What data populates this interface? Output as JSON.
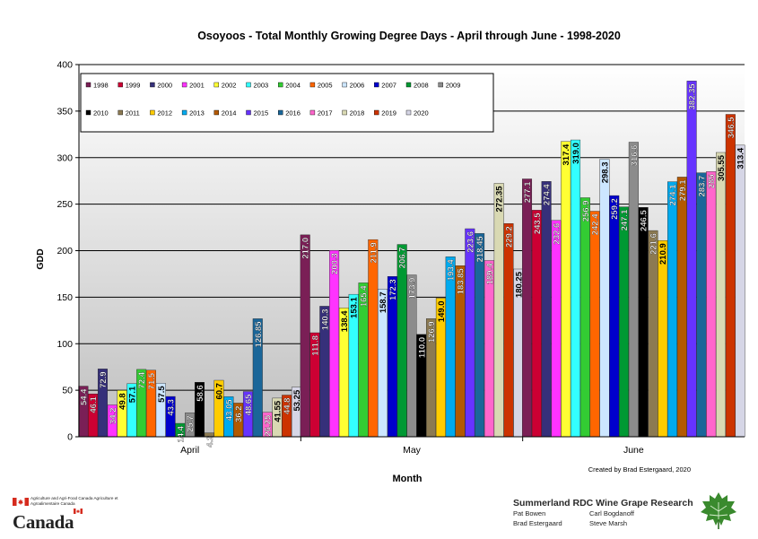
{
  "chart_data": {
    "type": "bar",
    "title": "Osoyoos - Total Monthly Growing Degree Days - April through June - 1998-2020",
    "xlabel": "Month",
    "ylabel": "GDD",
    "ylim": [
      0,
      400
    ],
    "yticks": [
      0,
      50,
      100,
      150,
      200,
      250,
      300,
      350,
      400
    ],
    "grid": true,
    "legend_position": "top-left",
    "categories": [
      "April",
      "May",
      "June"
    ],
    "annotation": "Created by Brad Estergaard, 2020",
    "series": [
      {
        "name": "1998",
        "color": "#7a1f56",
        "values": [
          54.4,
          217.0,
          277.1
        ],
        "labels": [
          "54.4",
          "217.0",
          "277.1"
        ]
      },
      {
        "name": "1999",
        "color": "#cc0033",
        "values": [
          46.1,
          111.8,
          243.5
        ],
        "labels": [
          "46.1",
          "111.8",
          "243.5"
        ]
      },
      {
        "name": "2000",
        "color": "#36307a",
        "values": [
          72.9,
          140.3,
          274.4
        ],
        "labels": [
          "72.9",
          "140.3",
          "274.4"
        ]
      },
      {
        "name": "2001",
        "color": "#ff33ff",
        "values": [
          34.2,
          200.3,
          232.6
        ],
        "labels": [
          "34.2",
          "200.3",
          "232.6"
        ]
      },
      {
        "name": "2002",
        "color": "#ffff33",
        "values": [
          49.8,
          138.4,
          317.4
        ],
        "labels": [
          "49.8",
          "138.4",
          "317.4"
        ]
      },
      {
        "name": "2003",
        "color": "#33ffff",
        "values": [
          57.1,
          153.1,
          319.0
        ],
        "labels": [
          "57.1",
          "153.1",
          "319.0"
        ]
      },
      {
        "name": "2004",
        "color": "#33cc33",
        "values": [
          72.4,
          165.4,
          256.9
        ],
        "labels": [
          "72.4",
          "165.4",
          "256.9"
        ]
      },
      {
        "name": "2005",
        "color": "#ff6600",
        "values": [
          71.5,
          211.9,
          242.4
        ],
        "labels": [
          "71.5",
          "211.9",
          "242.4"
        ]
      },
      {
        "name": "2006",
        "color": "#cce6ff",
        "values": [
          57.5,
          158.7,
          298.3
        ],
        "labels": [
          "57.5",
          "158.7",
          "298.3"
        ]
      },
      {
        "name": "2007",
        "color": "#0000cc",
        "values": [
          43.3,
          172.3,
          259.2
        ],
        "labels": [
          "43.3",
          "172.3",
          "259.2"
        ]
      },
      {
        "name": "2008",
        "color": "#009933",
        "values": [
          14.4,
          206.7,
          247.1
        ],
        "labels": [
          "14.4",
          "206.7",
          "247.1"
        ]
      },
      {
        "name": "2009",
        "color": "#8c8c8c",
        "values": [
          25.7,
          173.9,
          316.6
        ],
        "labels": [
          "25.7",
          "173.9",
          "316.6"
        ]
      },
      {
        "name": "2010",
        "color": "#000000",
        "values": [
          58.6,
          110.0,
          246.5
        ],
        "labels": [
          "58.6",
          "110.0",
          "246.5"
        ]
      },
      {
        "name": "2011",
        "color": "#8c7a52",
        "values": [
          4.2,
          126.9,
          221.6
        ],
        "labels": [
          "4.2",
          "126.9",
          "221.6"
        ]
      },
      {
        "name": "2012",
        "color": "#ffcc00",
        "values": [
          60.7,
          149.0,
          210.9
        ],
        "labels": [
          "60.7",
          "149.0",
          "210.9"
        ]
      },
      {
        "name": "2013",
        "color": "#00aaee",
        "values": [
          43.05,
          193.4,
          274.1
        ],
        "labels": [
          "43.05",
          "193.4",
          "274.1"
        ]
      },
      {
        "name": "2014",
        "color": "#b35900",
        "values": [
          36.2,
          183.85,
          279.1
        ],
        "labels": [
          "36.2",
          "183.85",
          "279.1"
        ]
      },
      {
        "name": "2015",
        "color": "#6633ff",
        "values": [
          48.65,
          223.6,
          382.35
        ],
        "labels": [
          "48.65",
          "223.6",
          "382.35"
        ]
      },
      {
        "name": "2016",
        "color": "#1a6699",
        "values": [
          126.85,
          218.45,
          283.7
        ],
        "labels": [
          "126.85",
          "218.45",
          "283.7"
        ]
      },
      {
        "name": "2017",
        "color": "#ff66cc",
        "values": [
          26.25,
          189.4,
          285
        ],
        "labels": [
          "26.25",
          "189.4",
          "285"
        ]
      },
      {
        "name": "2018",
        "color": "#d9d9b3",
        "values": [
          41.55,
          272.35,
          305.55
        ],
        "labels": [
          "41.55",
          "272.35",
          "305.55"
        ]
      },
      {
        "name": "2019",
        "color": "#cc3300",
        "values": [
          44.8,
          229.2,
          346.5
        ],
        "labels": [
          "44.8",
          "229.2",
          "346.5"
        ]
      },
      {
        "name": "2020",
        "color": "#d6d6e6",
        "values": [
          53.25,
          180.25,
          313.4
        ],
        "labels": [
          "53.25",
          "180.25",
          "313.4"
        ]
      }
    ]
  },
  "footer": {
    "aafc_logo_text": "Agriculture and Agri-Food Canada   Agriculture et Agroalimentaire Canada",
    "canada_wordmark": "Canada",
    "credit_title": "Summerland RDC Wine Grape Research",
    "names": [
      "Pat Bowen",
      "Carl Bogdanoff",
      "Brad Estergaard",
      "Steve Marsh"
    ]
  },
  "colors": {
    "plot_bg_top": "#ffffff",
    "plot_bg_bottom": "#bfbfbf",
    "canada_red": "#d52b1e",
    "leaf_green": "#3a8a2e"
  }
}
